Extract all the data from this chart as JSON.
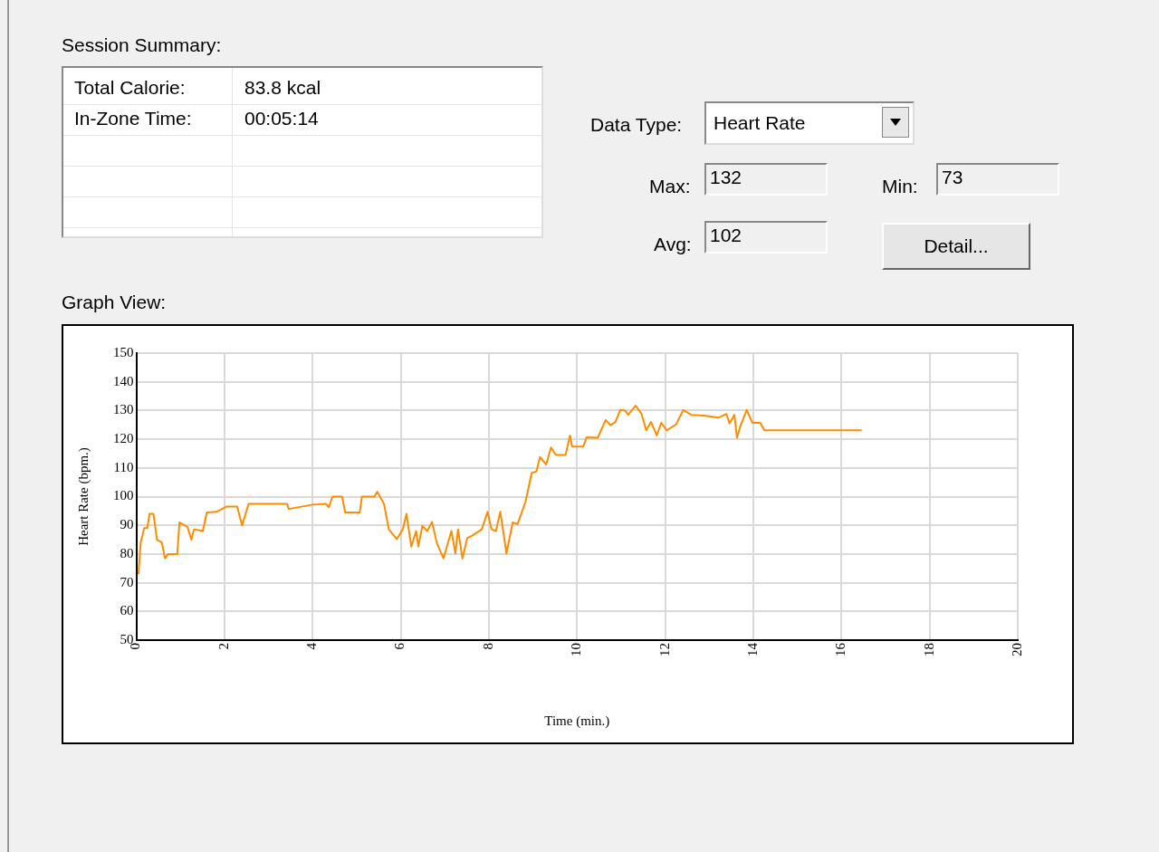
{
  "chart_data": {
    "type": "line",
    "title": "Graph View:",
    "xlabel": "Time (min.)",
    "ylabel": "Heart Rate (bpm.)",
    "annotations": [
      "Session Summary:",
      "Total Calorie:",
      "83.8 kcal",
      "In-Zone Time:",
      "00:05:14",
      "Data Type:",
      "Heart Rate",
      "Max:",
      "132",
      "Min:",
      "73",
      "Avg:",
      "102",
      "Detail..."
    ],
    "xlim": [
      0,
      20
    ],
    "xticks": [
      0,
      2,
      4,
      6,
      8,
      10,
      12,
      14,
      16,
      18,
      20
    ],
    "ylim": [
      50,
      150
    ],
    "yticks": [
      50,
      60,
      70,
      80,
      90,
      100,
      110,
      120,
      130,
      140,
      150
    ],
    "grid": true,
    "legend": false,
    "marker": "none",
    "line_style": "solid",
    "series": [
      {
        "color": "#ff8c00",
        "x": [
          0.05,
          0.1,
          0.18,
          0.25,
          0.3,
          0.39,
          0.47,
          0.58,
          0.65,
          0.72,
          0.93,
          0.98,
          1.16,
          1.25,
          1.31,
          1.51,
          1.6,
          1.82,
          2.04,
          2.29,
          2.4,
          2.55,
          3.42,
          3.46,
          4.0,
          4.3,
          4.37,
          4.45,
          4.67,
          4.74,
          5.07,
          5.12,
          5.4,
          5.47,
          5.62,
          5.73,
          5.91,
          6.05,
          6.13,
          6.24,
          6.35,
          6.4,
          6.49,
          6.6,
          6.71,
          6.82,
          6.97,
          7.15,
          7.24,
          7.3,
          7.4,
          7.51,
          7.62,
          7.84,
          7.97,
          8.06,
          8.16,
          8.26,
          8.4,
          8.54,
          8.65,
          8.83,
          8.97,
          9.08,
          9.16,
          9.3,
          9.41,
          9.52,
          9.74,
          9.84,
          9.89,
          10.14,
          10.22,
          10.47,
          10.65,
          10.76,
          10.87,
          10.98,
          11.09,
          11.16,
          11.33,
          11.46,
          11.57,
          11.68,
          11.81,
          11.91,
          12.04,
          12.25,
          12.41,
          12.59,
          12.88,
          13.21,
          13.39,
          13.46,
          13.57,
          13.63,
          13.7,
          13.85,
          13.98,
          14.16,
          14.25,
          16.46
        ],
        "values": [
          73,
          84,
          89,
          89,
          94,
          94,
          85,
          84,
          78.5,
          80,
          80,
          91,
          89.5,
          85,
          88.6,
          88,
          94.5,
          94.7,
          96.5,
          96.5,
          90,
          97.5,
          97.5,
          95.7,
          97.2,
          97.5,
          96.3,
          100,
          100,
          94.5,
          94.5,
          100,
          100,
          101.7,
          97.5,
          88.6,
          85.2,
          88.6,
          94,
          82.6,
          88,
          82.6,
          89.8,
          88,
          91.2,
          83.8,
          78.5,
          88,
          80.2,
          88.6,
          78.5,
          85.6,
          86.4,
          88.6,
          94.7,
          88.6,
          88,
          94.7,
          80.2,
          91,
          90.4,
          98.1,
          108.2,
          108.8,
          113.8,
          111.2,
          117.1,
          114.5,
          114.5,
          121.3,
          117.4,
          117.4,
          120.7,
          120.5,
          126.7,
          124.9,
          126,
          130.2,
          130,
          128.5,
          131.7,
          129,
          123.1,
          126,
          121.3,
          125.7,
          123.1,
          125.2,
          130.2,
          128.5,
          128.2,
          127.5,
          128.8,
          125.5,
          128.5,
          120.5,
          124.3,
          130.2,
          125.7,
          125.7,
          123.1,
          123.1
        ]
      }
    ]
  }
}
